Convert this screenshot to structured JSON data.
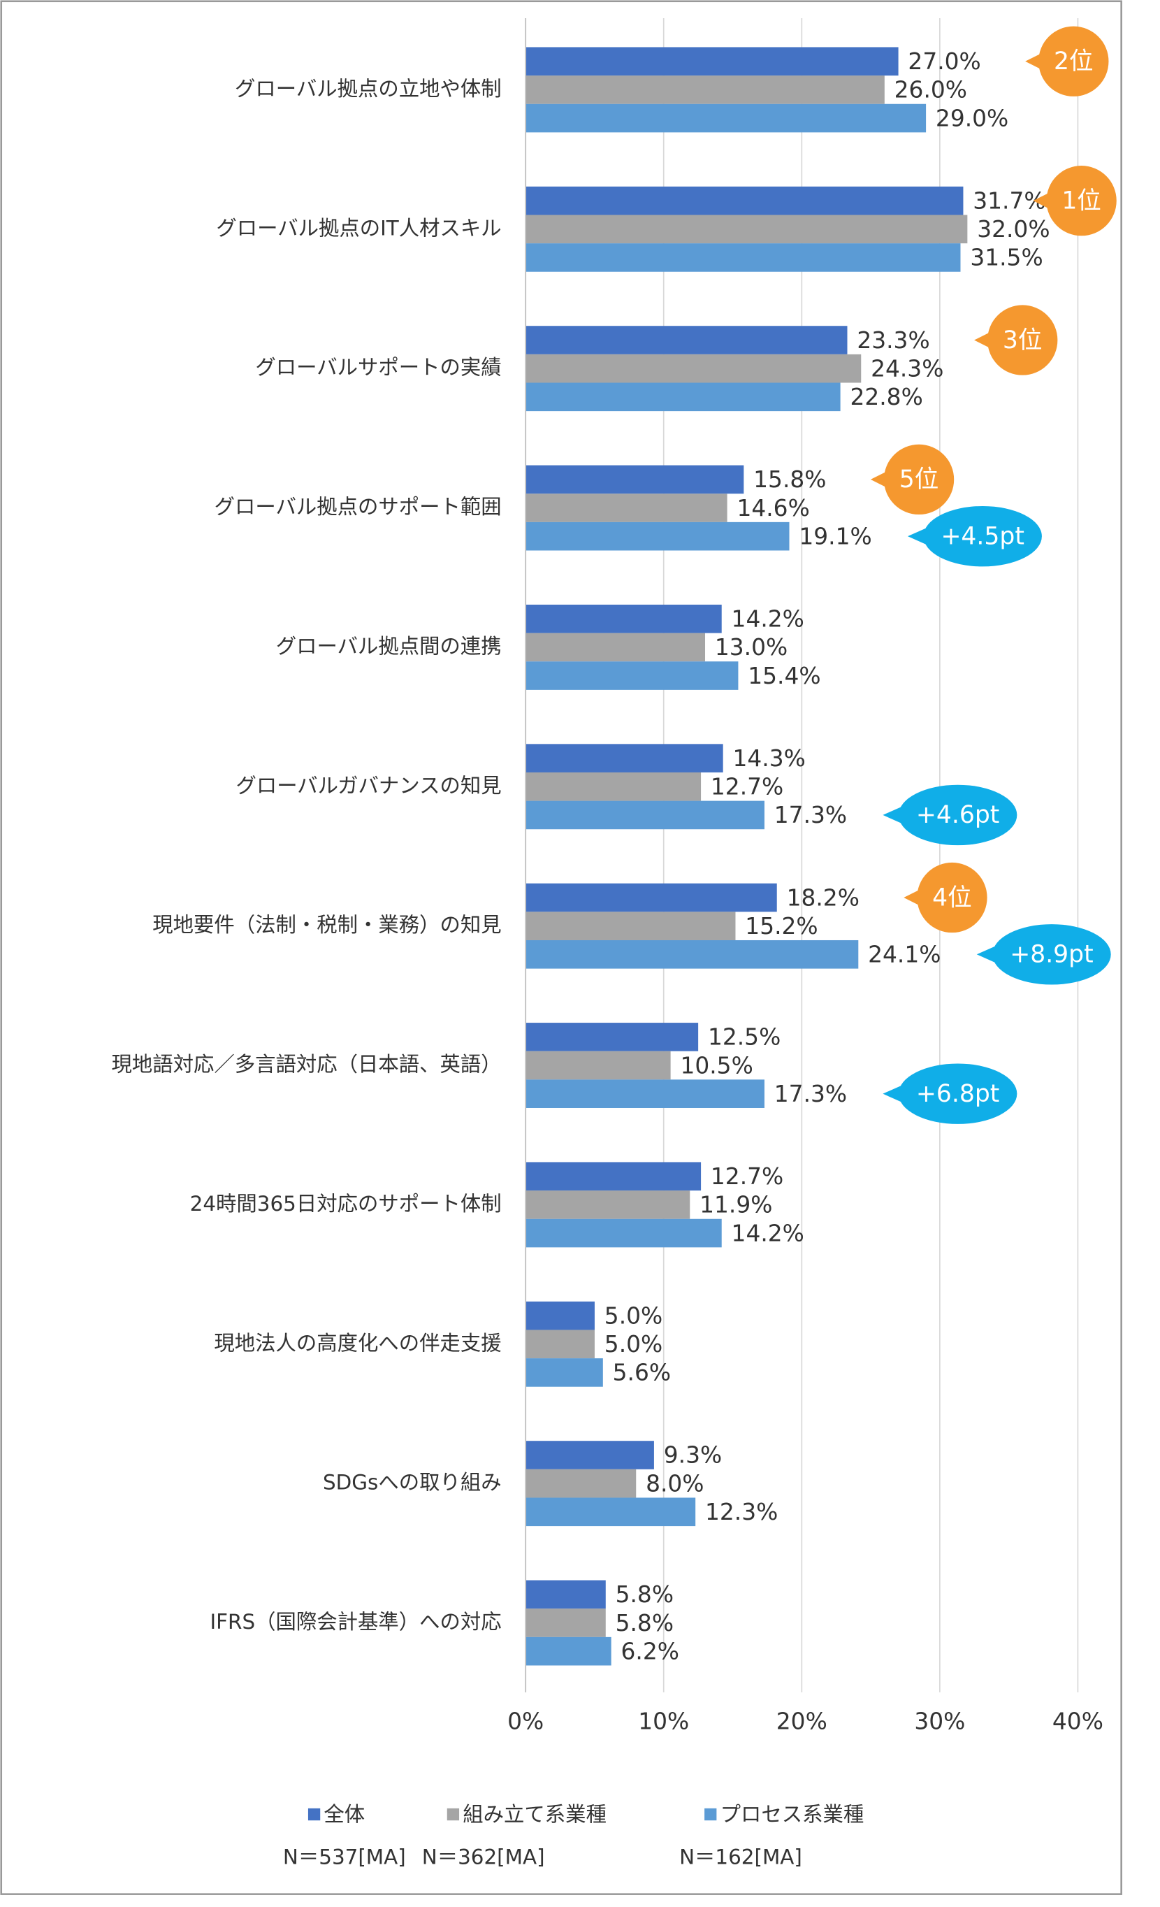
{
  "chart_data": {
    "type": "hbar",
    "categories": [
      "グローバル拠点の立地や体制",
      "グローバル拠点のIT人材スキル",
      "グローバルサポートの実績",
      "グローバル拠点のサポート範囲",
      "グローバル拠点間の連携",
      "グローバルガバナンスの知見",
      "現地要件（法制・税制・業務）の知見",
      "現地語対応／多言語対応（日本語、英語）",
      "24時間365日対応のサポート体制",
      "現地法人の高度化への伴走支援",
      "SDGsへの取り組み",
      "IFRS（国際会計基準）への対応"
    ],
    "series": [
      {
        "name": "全体",
        "sample": "N＝537[MA]",
        "color": "#4472c4",
        "values": [
          27.0,
          31.7,
          23.3,
          15.8,
          14.2,
          14.3,
          18.2,
          12.5,
          12.7,
          5.0,
          9.3,
          5.8
        ],
        "value_labels": [
          "27.0%",
          "31.7%",
          "23.3%",
          "15.8%",
          "14.2%",
          "14.3%",
          "18.2%",
          "12.5%",
          "12.7%",
          "5.0%",
          "9.3%",
          "5.8%"
        ],
        "rank_labels": [
          "2位",
          "1位",
          "3位",
          "5位",
          null,
          null,
          "4位",
          null,
          null,
          null,
          null,
          null
        ]
      },
      {
        "name": "組み立て系業種",
        "sample": "N＝362[MA]",
        "color": "#a5a5a5",
        "values": [
          26.0,
          32.0,
          24.3,
          14.6,
          13.0,
          12.7,
          15.2,
          10.5,
          11.9,
          5.0,
          8.0,
          5.8
        ],
        "value_labels": [
          "26.0%",
          "32.0%",
          "24.3%",
          "14.6%",
          "13.0%",
          "12.7%",
          "15.2%",
          "10.5%",
          "11.9%",
          "5.0%",
          "8.0%",
          "5.8%"
        ]
      },
      {
        "name": "プロセス系業種",
        "sample": "N＝162[MA]",
        "color": "#5b9bd5",
        "values": [
          29.0,
          31.5,
          22.8,
          19.1,
          15.4,
          17.3,
          24.1,
          17.3,
          14.2,
          5.6,
          12.3,
          6.2
        ],
        "value_labels": [
          "29.0%",
          "31.5%",
          "22.8%",
          "19.1%",
          "15.4%",
          "17.3%",
          "24.1%",
          "17.3%",
          "14.2%",
          "5.6%",
          "12.3%",
          "6.2%"
        ],
        "diff_labels": [
          null,
          null,
          null,
          "+4.5pt",
          null,
          "+4.6pt",
          "+8.9pt",
          "+6.8pt",
          null,
          null,
          null,
          null
        ]
      }
    ],
    "xlim": [
      0,
      40
    ],
    "xticks": [
      {
        "value": 0,
        "label": "0%"
      },
      {
        "value": 10,
        "label": "10%"
      },
      {
        "value": 20,
        "label": "20%"
      },
      {
        "value": 30,
        "label": "30%"
      },
      {
        "value": 40,
        "label": "40%"
      }
    ],
    "grid": true,
    "rank_color": "#f5982f",
    "diff_color": "#10aee8"
  }
}
